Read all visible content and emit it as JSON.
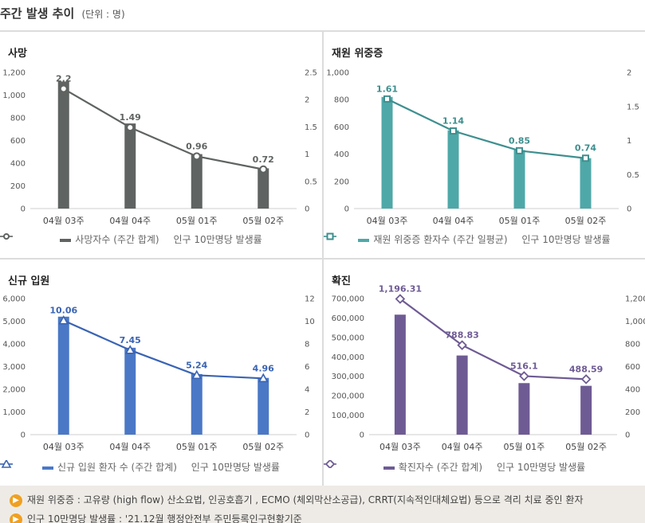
{
  "page": {
    "title": "주간 발생 추이",
    "unit": "(단위 : 명)"
  },
  "charts": [
    {
      "title": "사망",
      "type": "bar+line",
      "categories": [
        "04월 03주",
        "04월 04주",
        "05월 01주",
        "05월 02주"
      ],
      "bar_color": "#5f6361",
      "line_color": "#5f6361",
      "marker": "circle",
      "bar_values": [
        1120,
        750,
        480,
        355
      ],
      "line_values": [
        2.2,
        1.49,
        0.96,
        0.72
      ],
      "line_labels": [
        "2.2",
        "1.49",
        "0.96",
        "0.72"
      ],
      "y_left": {
        "min": 0,
        "max": 1200,
        "ticks": [
          0,
          200,
          400,
          600,
          800,
          1000,
          1200
        ],
        "tick_labels": [
          "0",
          "200",
          "400",
          "600",
          "800",
          "1,000",
          "1,200"
        ]
      },
      "y_right": {
        "min": 0,
        "max": 2.5,
        "ticks": [
          0,
          0.5,
          1,
          1.5,
          2,
          2.5
        ],
        "tick_labels": [
          "0",
          "0.5",
          "1",
          "1.5",
          "2",
          "2.5"
        ]
      },
      "legend": {
        "bar": "사망자수 (주간 합계)",
        "line": "인구 10만명당 발생률"
      }
    },
    {
      "title": "재원 위중증",
      "type": "bar+line",
      "categories": [
        "04월 03주",
        "04월 04주",
        "05월 01주",
        "05월 02주"
      ],
      "bar_color": "#4fa8a8",
      "line_color": "#3f8f8f",
      "marker": "square",
      "bar_values": [
        820,
        575,
        430,
        370
      ],
      "line_values": [
        1.61,
        1.14,
        0.85,
        0.74
      ],
      "line_labels": [
        "1.61",
        "1.14",
        "0.85",
        "0.74"
      ],
      "y_left": {
        "min": 0,
        "max": 1000,
        "ticks": [
          0,
          200,
          400,
          600,
          800,
          1000
        ],
        "tick_labels": [
          "0",
          "200",
          "400",
          "600",
          "800",
          "1,000"
        ]
      },
      "y_right": {
        "min": 0,
        "max": 2,
        "ticks": [
          0,
          0.5,
          1,
          1.5,
          2
        ],
        "tick_labels": [
          "0",
          "0.5",
          "1",
          "1.5",
          "2"
        ]
      },
      "legend": {
        "bar": "재원 위중증 환자수 (주간 일평균)",
        "line": "인구 10만명당 발생률"
      }
    },
    {
      "title": "신규 입원",
      "type": "bar+line",
      "categories": [
        "04월 03주",
        "04월 04주",
        "05월 01주",
        "05월 02주"
      ],
      "bar_color": "#4a78c6",
      "line_color": "#3a64b4",
      "marker": "triangle",
      "bar_values": [
        5200,
        3830,
        2670,
        2500
      ],
      "line_values": [
        10.06,
        7.45,
        5.24,
        4.96
      ],
      "line_labels": [
        "10.06",
        "7.45",
        "5.24",
        "4.96"
      ],
      "y_left": {
        "min": 0,
        "max": 6000,
        "ticks": [
          0,
          1000,
          2000,
          3000,
          4000,
          5000,
          6000
        ],
        "tick_labels": [
          "0",
          "1,000",
          "2,000",
          "3,000",
          "4,000",
          "5,000",
          "6,000"
        ]
      },
      "y_right": {
        "min": 0,
        "max": 12,
        "ticks": [
          0,
          2,
          4,
          6,
          8,
          10,
          12
        ],
        "tick_labels": [
          "0",
          "2",
          "4",
          "6",
          "8",
          "10",
          "12"
        ]
      },
      "legend": {
        "bar": "신규 입원 환자 수 (주간 합계)",
        "line": "인구 10만명당 발생률"
      }
    },
    {
      "title": "확진",
      "type": "bar+line",
      "categories": [
        "04월 03주",
        "04월 04주",
        "05월 01주",
        "05월 02주"
      ],
      "bar_color": "#6e5b94",
      "line_color": "#6e5b94",
      "marker": "diamond",
      "bar_values": [
        617000,
        407000,
        265000,
        251000
      ],
      "line_values": [
        1196.31,
        788.83,
        516.1,
        488.59
      ],
      "line_labels": [
        "1,196.31",
        "788.83",
        "516.1",
        "488.59"
      ],
      "y_left": {
        "min": 0,
        "max": 700000,
        "ticks": [
          0,
          100000,
          200000,
          300000,
          400000,
          500000,
          600000,
          700000
        ],
        "tick_labels": [
          "0",
          "100,000",
          "200,000",
          "300,000",
          "400,000",
          "500,000",
          "600,000",
          "700,000"
        ]
      },
      "y_right": {
        "min": 0,
        "max": 1200,
        "ticks": [
          0,
          200,
          400,
          600,
          800,
          1000,
          1200
        ],
        "tick_labels": [
          "0",
          "200",
          "400",
          "600",
          "800",
          "1,000",
          "1,200"
        ]
      },
      "legend": {
        "bar": "확진자수 (주간 합계)",
        "line": "인구 10만명당 발생률"
      }
    }
  ],
  "footer": {
    "notes": [
      "재원 위중증 : 고유량 (high flow) 산소요법, 인공호흡기 , ECMO (체외막산소공급), CRRT(지속적인대체요법) 등으로 격리 치료 중인 환자",
      "인구 10만명당 발생률 : '21.12월 행정안전부 주민등록인구현황기준"
    ]
  }
}
